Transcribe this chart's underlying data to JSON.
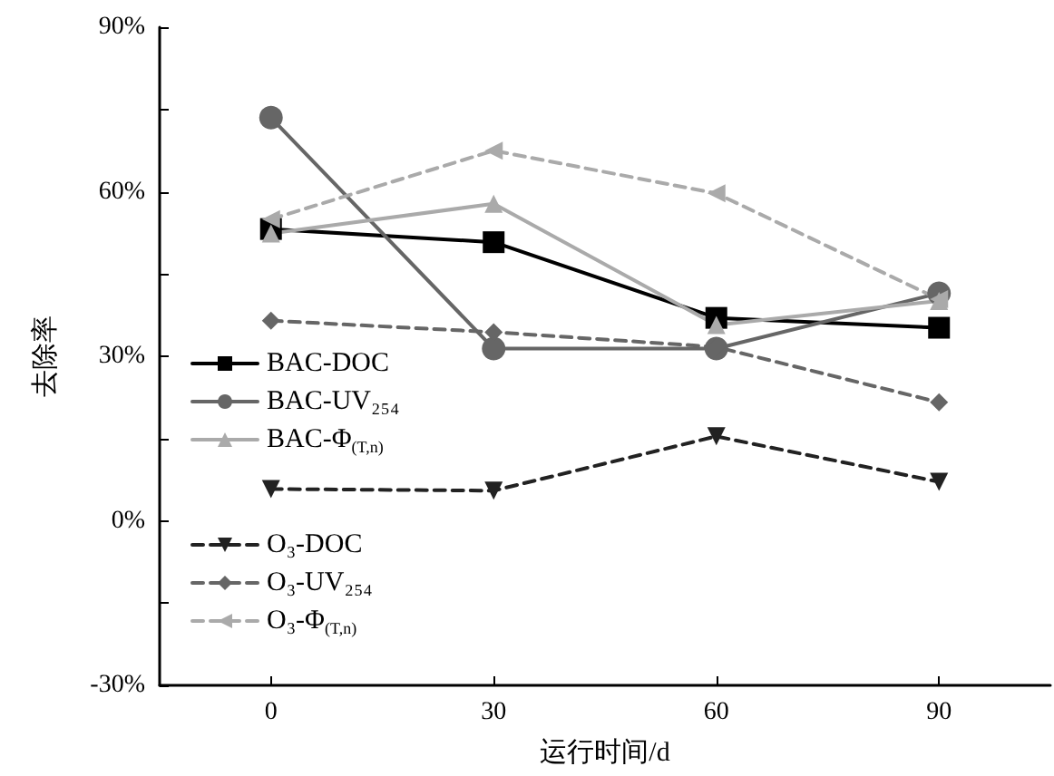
{
  "chart_data": {
    "type": "line",
    "xlabel": "运行时间/d",
    "ylabel": "去除率",
    "x": [
      0,
      30,
      60,
      90
    ],
    "xlim": [
      -15,
      105
    ],
    "xticks": [
      0,
      30,
      60,
      90
    ],
    "ylim": [
      -30,
      90
    ],
    "yticks": [
      {
        "value": -30,
        "label": "-30%"
      },
      {
        "value": -15,
        "label": null
      },
      {
        "value": 0,
        "label": "0%"
      },
      {
        "value": 15,
        "label": null
      },
      {
        "value": 30,
        "label": "30%"
      },
      {
        "value": 45,
        "label": null
      },
      {
        "value": 60,
        "label": "60%"
      },
      {
        "value": 75,
        "label": null
      },
      {
        "value": 90,
        "label": "90%"
      }
    ],
    "grid": false,
    "legend": "left",
    "series": [
      {
        "name": "BAC-DOC",
        "color": "#000000",
        "marker": "square",
        "line_style": "solid",
        "values": [
          53.2,
          50.8,
          37.0,
          35.2
        ]
      },
      {
        "name": "BAC-UV₂₅₄",
        "color": "#666666",
        "marker": "circle",
        "line_style": "solid",
        "values": [
          73.5,
          31.4,
          31.4,
          41.5
        ]
      },
      {
        "name": "BAC-Φ$_{(T,n)}$",
        "color": "#aaaaaa",
        "marker": "triangle",
        "line_style": "solid",
        "values": [
          52.4,
          57.8,
          35.7,
          40.1
        ]
      },
      {
        "name": "O₃-DOC",
        "color": "#222222",
        "marker": "triangle-down",
        "line_style": "dashed",
        "values": [
          5.8,
          5.5,
          15.4,
          7.1
        ]
      },
      {
        "name": "O₃-UV₂₅₄",
        "color": "#666666",
        "marker": "diamond",
        "line_style": "dashed",
        "values": [
          36.5,
          34.4,
          31.7,
          21.6
        ]
      },
      {
        "name": "O₃-Φ$_{(T,n)}$",
        "color": "#aaaaaa",
        "marker": "triangle-left",
        "line_style": "dashed",
        "values": [
          55.0,
          67.5,
          59.7,
          40.4
        ]
      }
    ]
  }
}
